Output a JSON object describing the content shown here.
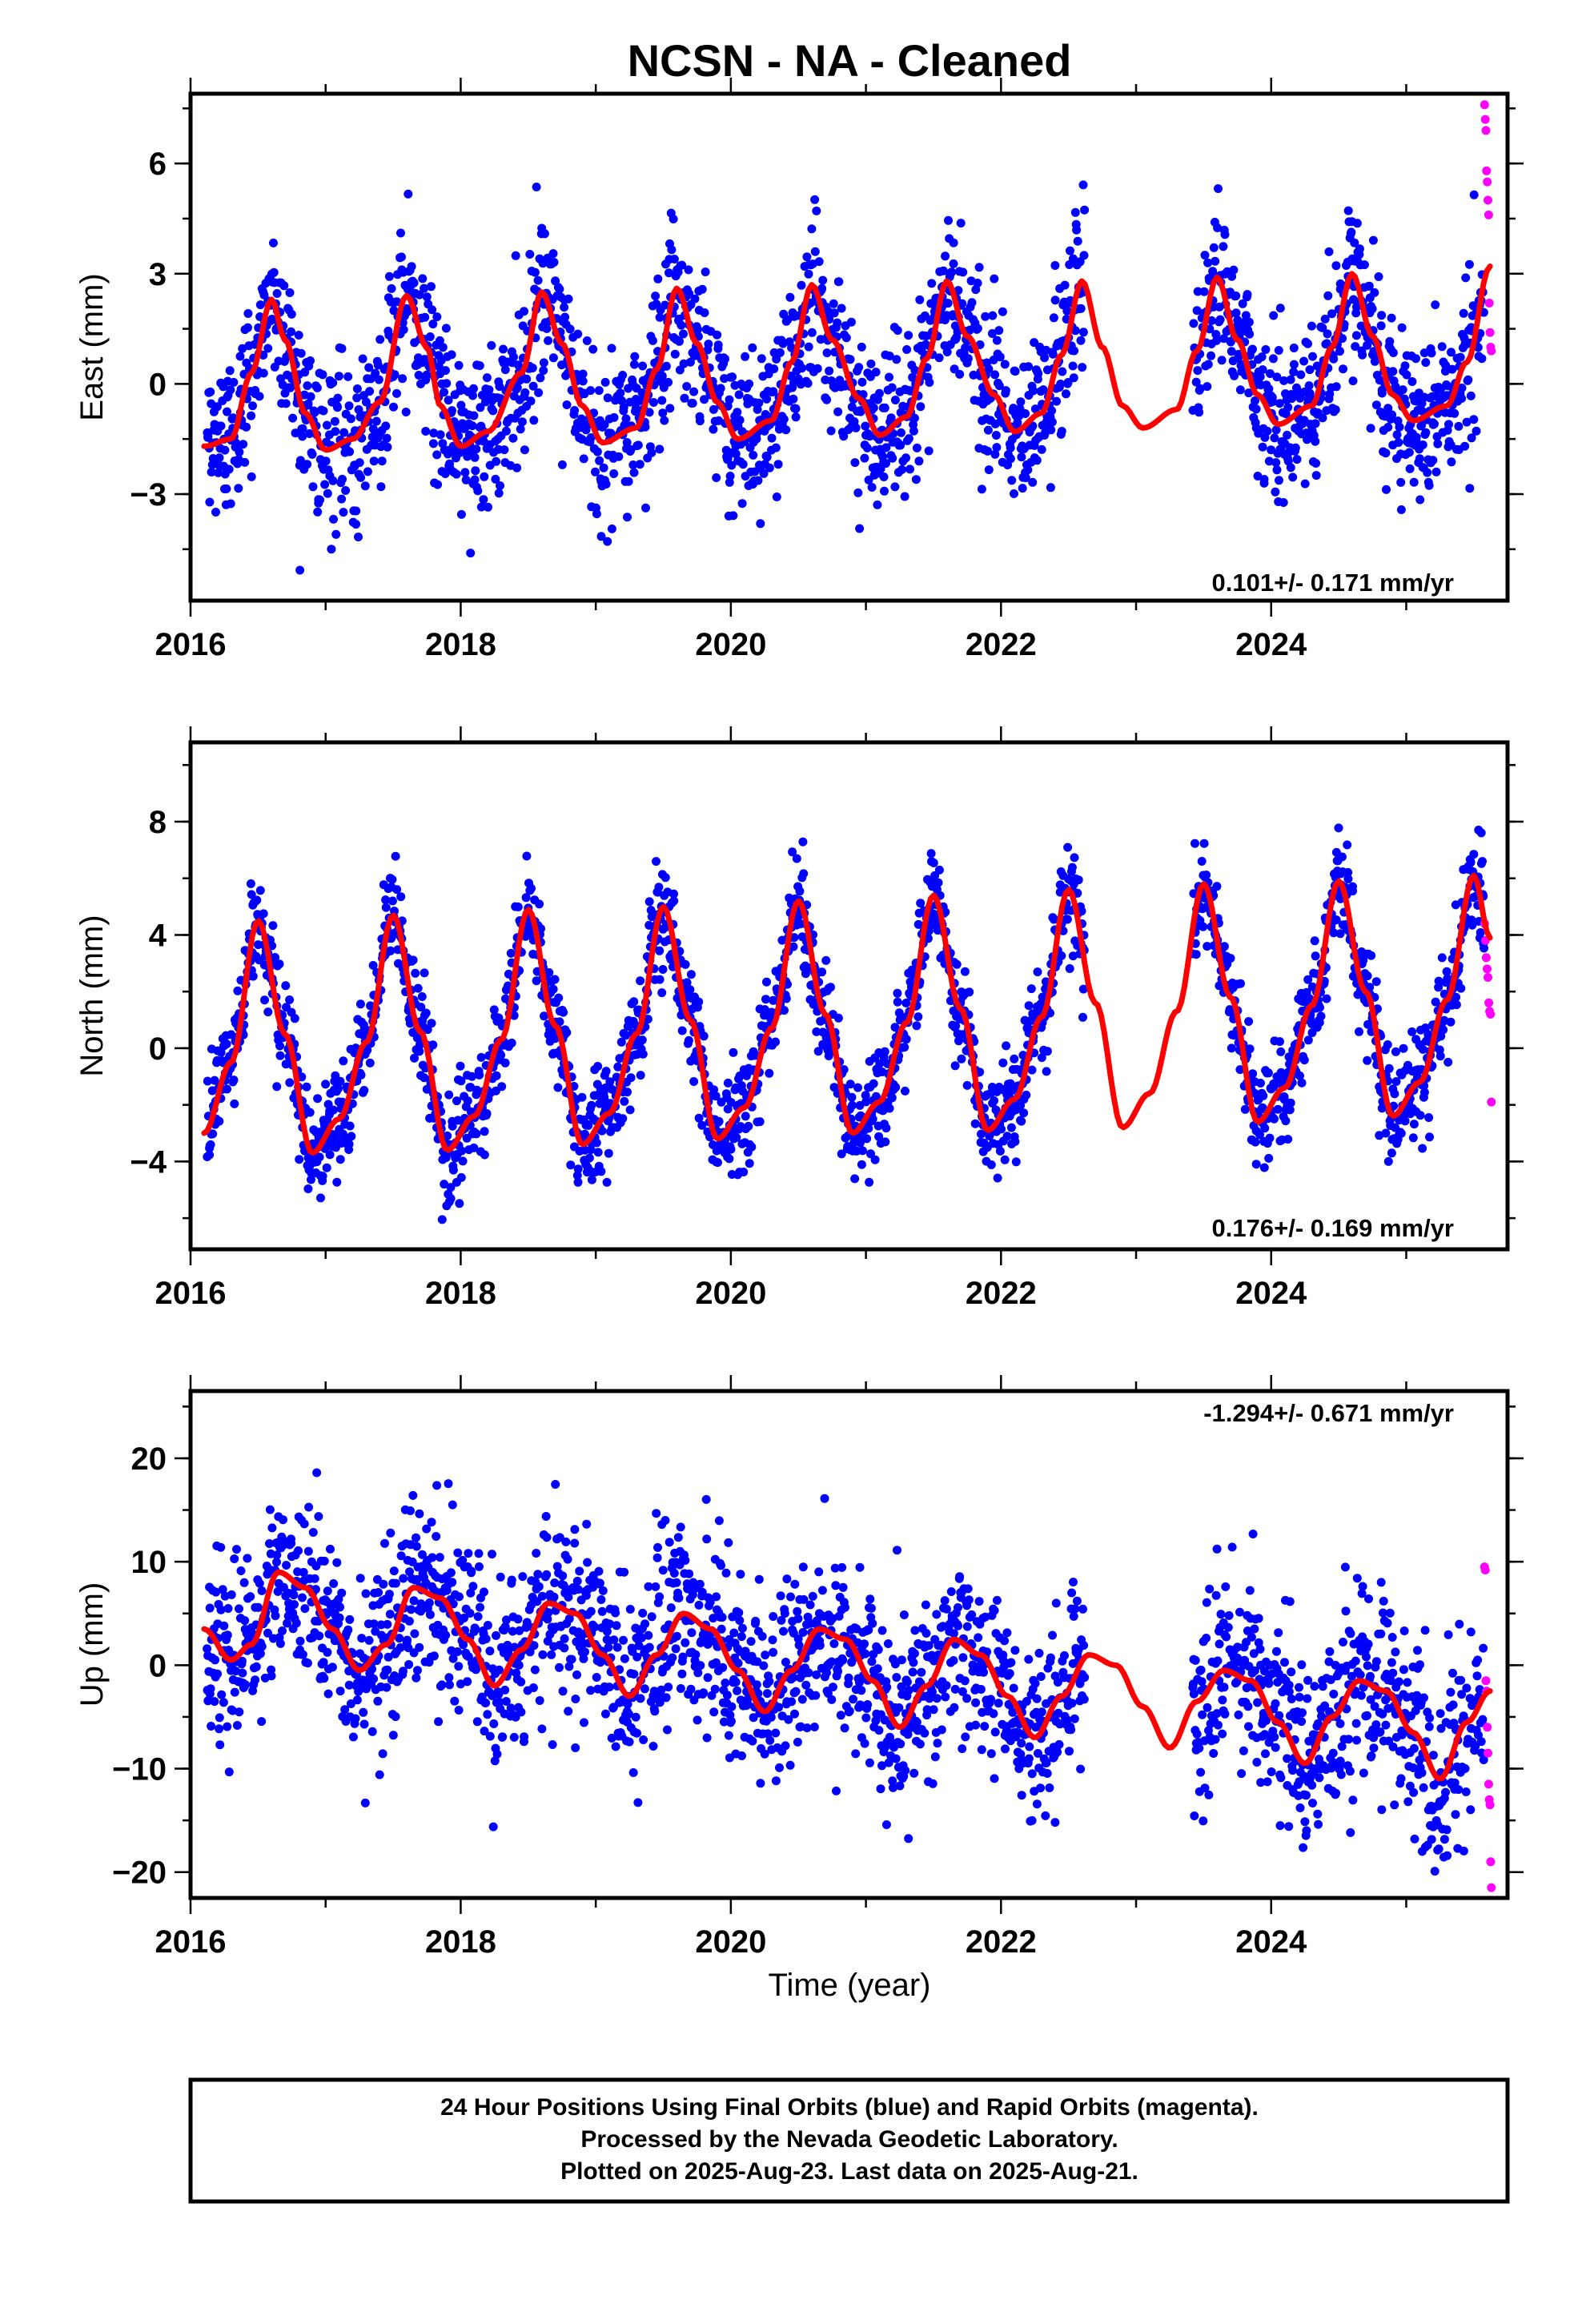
{
  "title": "NCSN  - NA - Cleaned",
  "xlabel": "Time (year)",
  "xticks": [
    "2016",
    "2018",
    "2020",
    "2022",
    "2024"
  ],
  "xticks_values": [
    2016,
    2018,
    2020,
    2022,
    2024
  ],
  "colors": {
    "final": "#0000ff",
    "rapid": "#ff00ff",
    "model": "#ff0000"
  },
  "footer": [
    "24 Hour Positions Using Final Orbits (blue) and Rapid Orbits (magenta).",
    "Processed by the Nevada Geodetic Laboratory.",
    "Plotted on 2025-Aug-23. Last data on 2025-Aug-21."
  ],
  "chart_data": [
    {
      "type": "scatter",
      "ylabel": "East (mm)",
      "rate_label": "0.101+/- 0.171 mm/yr",
      "xlim": [
        2016.0,
        2025.75
      ],
      "ylim": [
        -5.9,
        7.9
      ],
      "yticks": [
        -3,
        0,
        3,
        6
      ],
      "ytick_labels": [
        "−3",
        "0",
        "3",
        "6"
      ],
      "data_span": [
        2016.12,
        2025.58
      ],
      "gaps": [
        [
          2022.62,
          2023.42
        ]
      ],
      "rapid_span": [
        2025.58,
        2025.63
      ],
      "model": {
        "x": [
          2016.1,
          2016.3,
          2016.45,
          2016.6,
          2016.7,
          2016.85,
          2017.0,
          2017.2,
          2017.4,
          2017.6,
          2017.75,
          2017.85,
          2018.0,
          2018.2,
          2018.45,
          2018.6,
          2018.75,
          2018.9,
          2019.05,
          2019.3,
          2019.45,
          2019.6,
          2019.75,
          2019.9,
          2020.05,
          2020.3,
          2020.45,
          2020.6,
          2020.75,
          2020.95,
          2021.1,
          2021.3,
          2021.45,
          2021.6,
          2021.75,
          2021.95,
          2022.1,
          2022.3,
          2022.45,
          2022.6,
          2022.75,
          2022.9,
          2023.05,
          2023.3,
          2023.45,
          2023.6,
          2023.75,
          2023.9,
          2024.05,
          2024.3,
          2024.45,
          2024.6,
          2024.75,
          2024.9,
          2025.05,
          2025.3,
          2025.45,
          2025.62
        ],
        "y": [
          -1.7,
          -1.5,
          0.3,
          2.3,
          1.2,
          -0.8,
          -1.8,
          -1.5,
          -0.5,
          2.4,
          1.0,
          -0.6,
          -1.7,
          -1.3,
          0.3,
          2.5,
          1.1,
          -0.6,
          -1.6,
          -1.2,
          0.4,
          2.6,
          1.1,
          -0.5,
          -1.5,
          -1.0,
          0.6,
          2.7,
          1.2,
          -0.4,
          -1.4,
          -0.9,
          0.7,
          2.8,
          1.3,
          -0.3,
          -1.3,
          -0.8,
          0.8,
          2.8,
          1.0,
          -0.6,
          -1.2,
          -0.7,
          0.9,
          2.9,
          1.2,
          -0.3,
          -1.1,
          -0.6,
          1.0,
          3.0,
          1.3,
          -0.3,
          -1.0,
          -0.6,
          0.6,
          3.2
        ]
      },
      "noise_sd": 1.1,
      "rapid_y": [
        7.6,
        7.2,
        6.9,
        5.8,
        5.5,
        5.0,
        4.6,
        2.2,
        1.4,
        1.0,
        0.9
      ]
    },
    {
      "type": "scatter",
      "ylabel": "North (mm)",
      "rate_label": "0.176+/- 0.169 mm/yr",
      "xlim": [
        2016.0,
        2025.75
      ],
      "ylim": [
        -7.1,
        10.8
      ],
      "yticks": [
        -4,
        0,
        4,
        8
      ],
      "ytick_labels": [
        "−4",
        "0",
        "4",
        "8"
      ],
      "data_span": [
        2016.12,
        2025.58
      ],
      "gaps": [
        [
          2022.62,
          2023.42
        ]
      ],
      "rapid_span": [
        2025.58,
        2025.63
      ],
      "model": {
        "x": [
          2016.1,
          2016.3,
          2016.5,
          2016.7,
          2016.9,
          2017.1,
          2017.3,
          2017.5,
          2017.7,
          2017.9,
          2018.1,
          2018.3,
          2018.5,
          2018.7,
          2018.9,
          2019.1,
          2019.3,
          2019.5,
          2019.7,
          2019.9,
          2020.1,
          2020.3,
          2020.5,
          2020.7,
          2020.9,
          2021.1,
          2021.3,
          2021.5,
          2021.7,
          2021.9,
          2022.1,
          2022.3,
          2022.5,
          2022.7,
          2022.9,
          2023.1,
          2023.3,
          2023.5,
          2023.7,
          2023.9,
          2024.1,
          2024.3,
          2024.5,
          2024.7,
          2024.9,
          2025.1,
          2025.3,
          2025.5,
          2025.62
        ],
        "y": [
          -3.0,
          -0.5,
          4.5,
          0.5,
          -3.7,
          -2.5,
          0.2,
          4.7,
          0.6,
          -3.6,
          -2.4,
          0.3,
          4.9,
          0.8,
          -3.4,
          -2.3,
          0.5,
          5.0,
          1.0,
          -3.2,
          -2.1,
          0.7,
          5.2,
          1.2,
          -3.0,
          -1.9,
          0.9,
          5.4,
          1.4,
          -2.9,
          -1.8,
          1.1,
          5.6,
          1.6,
          -2.8,
          -1.6,
          1.3,
          5.8,
          1.8,
          -2.6,
          -1.4,
          1.5,
          5.9,
          2.0,
          -2.4,
          -1.2,
          1.7,
          6.1,
          3.9
        ]
      },
      "noise_sd": 0.9,
      "rapid_y": [
        4.4,
        3.8,
        3.2,
        2.8,
        2.5,
        1.6,
        1.3,
        1.2,
        -1.9
      ]
    },
    {
      "type": "scatter",
      "ylabel": "Up (mm)",
      "rate_label": "-1.294+/- 0.671 mm/yr",
      "xlim": [
        2016.0,
        2025.75
      ],
      "ylim": [
        -22.5,
        26.5
      ],
      "yticks": [
        -20,
        -10,
        0,
        10,
        20
      ],
      "ytick_labels": [
        "−20",
        "−10",
        "0",
        "10",
        "20"
      ],
      "data_span": [
        2016.12,
        2025.58
      ],
      "gaps": [
        [
          2022.62,
          2023.42
        ]
      ],
      "rapid_span": [
        2025.58,
        2025.63
      ],
      "model": {
        "x": [
          2016.1,
          2016.3,
          2016.45,
          2016.65,
          2016.85,
          2017.05,
          2017.25,
          2017.45,
          2017.65,
          2017.85,
          2018.05,
          2018.25,
          2018.45,
          2018.65,
          2018.85,
          2019.05,
          2019.25,
          2019.45,
          2019.65,
          2019.85,
          2020.05,
          2020.25,
          2020.45,
          2020.65,
          2020.85,
          2021.05,
          2021.25,
          2021.45,
          2021.65,
          2021.85,
          2022.05,
          2022.25,
          2022.45,
          2022.65,
          2022.85,
          2023.05,
          2023.25,
          2023.45,
          2023.65,
          2023.85,
          2024.05,
          2024.25,
          2024.45,
          2024.65,
          2024.85,
          2025.05,
          2025.25,
          2025.45,
          2025.62
        ],
        "y": [
          3.5,
          0.5,
          2.0,
          9.0,
          7.5,
          3.5,
          -0.5,
          2.0,
          7.5,
          6.5,
          2.5,
          -2.0,
          1.5,
          6.0,
          5.0,
          1.0,
          -3.0,
          1.0,
          5.0,
          3.5,
          -0.5,
          -4.5,
          -0.5,
          3.5,
          2.5,
          -1.5,
          -6.0,
          -2.0,
          2.5,
          1.0,
          -3.0,
          -7.0,
          -3.0,
          1.0,
          0.0,
          -4.0,
          -8.0,
          -3.5,
          -0.5,
          -1.5,
          -5.5,
          -9.5,
          -5.0,
          -1.5,
          -2.5,
          -6.5,
          -11.0,
          -5.5,
          -2.5
        ]
      },
      "noise_sd": 4.5,
      "rapid_y": [
        9.5,
        9.2,
        -1.5,
        -2.5,
        -6.0,
        -8.5,
        -11.5,
        -13.0,
        -13.5,
        -19.0,
        -21.5
      ]
    }
  ]
}
